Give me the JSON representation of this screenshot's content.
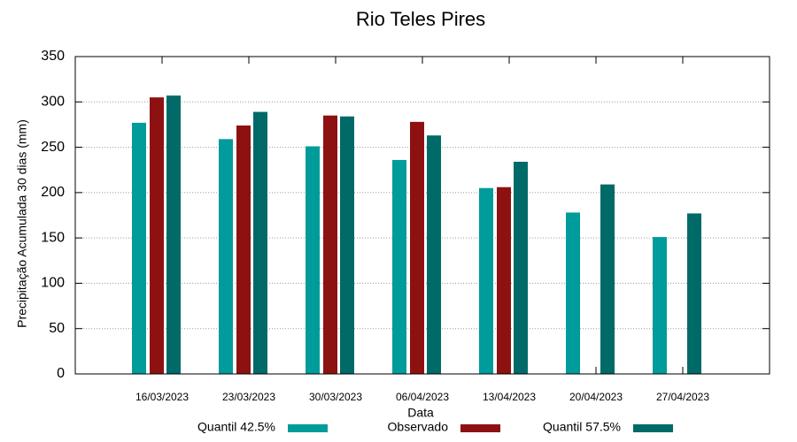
{
  "chart_data": {
    "type": "bar",
    "title": "Rio Teles Pires",
    "x_label": "Data",
    "y_label": "Precipitação Acumulada 30 dias (mm)",
    "categories": [
      "16/03/2023",
      "23/03/2023",
      "30/03/2023",
      "06/04/2023",
      "13/04/2023",
      "20/04/2023",
      "27/04/2023"
    ],
    "series": [
      {
        "name": "Quantil 42.5%",
        "color": "#009b9b",
        "values": [
          277,
          259,
          251,
          236,
          205,
          178,
          151
        ]
      },
      {
        "name": "Observado",
        "color": "#8e1111",
        "values": [
          305,
          274,
          285,
          278,
          206,
          null,
          null
        ]
      },
      {
        "name": "Quantil 57.5%",
        "color": "#006a68",
        "values": [
          307,
          289,
          284,
          263,
          234,
          209,
          177
        ]
      }
    ],
    "ylim": [
      0,
      350
    ],
    "yticks": [
      0,
      50,
      100,
      150,
      200,
      250,
      300,
      350
    ],
    "grid": true,
    "legend": "bottom"
  }
}
